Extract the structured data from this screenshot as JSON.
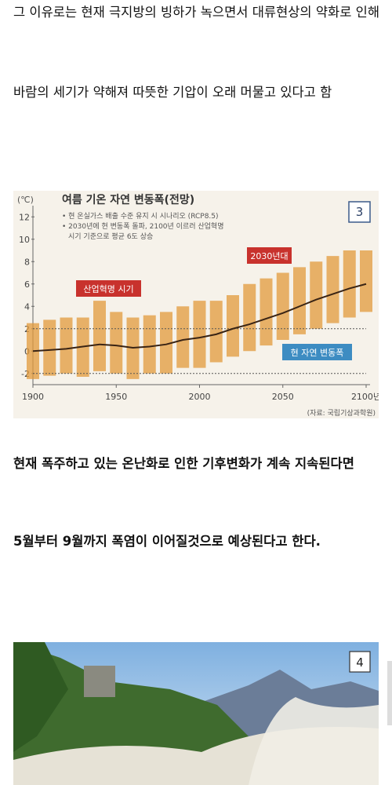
{
  "paragraphs": [
    "그 이유로는 현재 극지방의 빙하가 녹으면서 대류현상의 약화로 인해",
    "바람의 세기가 약해져 따뜻한 기압이 오래 머물고 있다고 함"
  ],
  "bold_paragraphs": [
    "현재 폭주하고 있는 온난화로 인한 기후변화가 계속 지속된다면",
    "5월부터 9월까지 폭염이 이어질것으로 예상된다고 한다."
  ],
  "chart_data": {
    "type": "line",
    "badge": "3",
    "title": "여름 기온 자연 변동폭(전망)",
    "y_label": "(℃)",
    "notes": [
      "• 현 온실가스 배출 수준 유지 시 시나리오 (RCP8.5)",
      "• 2030년에 현 변동폭 돌파, 2100년 이르러 산업혁명",
      "시기 기준으로 평균 6도 상승"
    ],
    "annotations": [
      "산업혁명 시기",
      "2030년대",
      "현 자연 변동폭"
    ],
    "source": "(자료: 국립기상과학원)",
    "x": [
      1900,
      1910,
      1920,
      1930,
      1940,
      1950,
      1960,
      1970,
      1980,
      1990,
      2000,
      2010,
      2020,
      2030,
      2040,
      2050,
      2060,
      2070,
      2080,
      2090,
      2100
    ],
    "values": [
      0,
      0.1,
      0.2,
      0.4,
      0.6,
      0.5,
      0.3,
      0.4,
      0.6,
      1.0,
      1.2,
      1.5,
      2.0,
      2.4,
      2.9,
      3.4,
      4.0,
      4.6,
      5.1,
      5.6,
      6.0
    ],
    "upper": [
      2.5,
      2.8,
      3.0,
      3.0,
      4.5,
      3.5,
      3.0,
      3.2,
      3.5,
      4.0,
      4.5,
      4.5,
      5.0,
      6.0,
      6.5,
      7.0,
      7.5,
      8.0,
      8.5,
      9.0,
      9.0
    ],
    "lower": [
      -2.5,
      -2.2,
      -2.0,
      -2.3,
      -1.8,
      -2.0,
      -2.5,
      -2.0,
      -2.0,
      -1.5,
      -1.5,
      -1.0,
      -0.5,
      0,
      0.5,
      1.0,
      1.5,
      2.0,
      2.5,
      3.0,
      3.5
    ],
    "color": "#3a2414",
    "range_color": "#e39a3c",
    "reference_lines": [
      2,
      -2
    ],
    "xlim": [
      1900,
      2100
    ],
    "xticks": [
      1900,
      1950,
      2000,
      2050,
      {
        "value": 2100,
        "label": "2100년"
      }
    ],
    "ylim": [
      -3,
      13
    ],
    "yticks": [
      -2,
      0,
      2,
      4,
      6,
      8,
      10,
      12
    ]
  },
  "photo": {
    "badge": "4"
  }
}
